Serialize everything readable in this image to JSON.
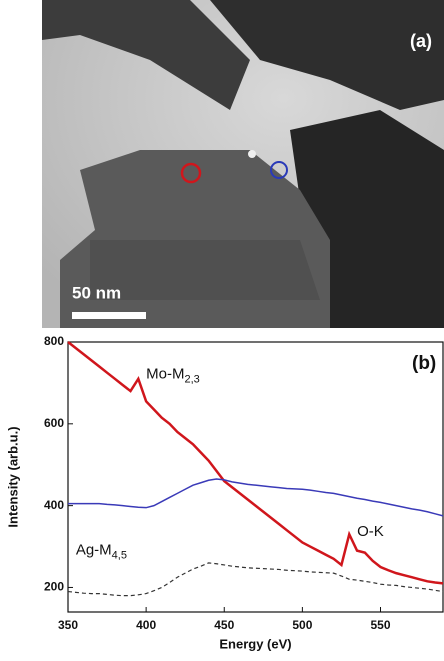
{
  "image_panel": {
    "label": "(a)",
    "scale_bar": "50 nm"
  },
  "chart_data": {
    "type": "line",
    "panel_label": "(b)",
    "xlabel": "Energy (eV)",
    "ylabel": "Intensity (arb.u.)",
    "xlim": [
      350,
      590
    ],
    "ylim": [
      140,
      800
    ],
    "xticks": [
      350,
      400,
      450,
      500,
      550
    ],
    "yticks": [
      200,
      400,
      600,
      800
    ],
    "annotations": [
      {
        "text": "Mo-M",
        "sub": "2,3",
        "x": 400,
        "y": 720
      },
      {
        "text": "O-K",
        "x": 535,
        "y": 335
      },
      {
        "text": "Ag-M",
        "sub": "4,5",
        "x": 355,
        "y": 290
      }
    ],
    "x": [
      350,
      355,
      360,
      365,
      370,
      375,
      380,
      385,
      390,
      395,
      400,
      405,
      410,
      415,
      420,
      425,
      430,
      435,
      440,
      445,
      450,
      455,
      460,
      465,
      470,
      475,
      480,
      485,
      490,
      495,
      500,
      505,
      510,
      515,
      520,
      525,
      530,
      535,
      540,
      545,
      550,
      555,
      560,
      565,
      570,
      575,
      580,
      585,
      590
    ],
    "series": [
      {
        "color": "#d0161c",
        "dash": false,
        "values": [
          800,
          785,
          770,
          755,
          740,
          725,
          710,
          695,
          680,
          710,
          655,
          635,
          615,
          600,
          580,
          565,
          550,
          530,
          510,
          485,
          460,
          445,
          430,
          415,
          400,
          385,
          370,
          355,
          340,
          325,
          310,
          300,
          290,
          280,
          270,
          255,
          330,
          290,
          285,
          265,
          250,
          242,
          235,
          230,
          225,
          220,
          215,
          212,
          210
        ]
      },
      {
        "color": "#3a3ab8",
        "dash": false,
        "values": [
          405,
          405,
          405,
          405,
          405,
          403,
          402,
          400,
          398,
          396,
          395,
          400,
          410,
          420,
          430,
          440,
          450,
          456,
          462,
          465,
          463,
          458,
          455,
          452,
          450,
          448,
          446,
          444,
          442,
          441,
          440,
          438,
          435,
          432,
          430,
          426,
          422,
          418,
          415,
          411,
          408,
          404,
          400,
          396,
          392,
          389,
          385,
          380,
          375
        ]
      },
      {
        "color": "#333333",
        "dash": true,
        "values": [
          190,
          188,
          186,
          185,
          185,
          183,
          181,
          180,
          180,
          182,
          185,
          192,
          200,
          212,
          225,
          235,
          245,
          252,
          260,
          258,
          255,
          252,
          250,
          248,
          247,
          246,
          245,
          244,
          242,
          241,
          240,
          238,
          237,
          236,
          235,
          228,
          220,
          218,
          215,
          212,
          208,
          206,
          205,
          202,
          200,
          198,
          196,
          193,
          190
        ]
      }
    ]
  }
}
